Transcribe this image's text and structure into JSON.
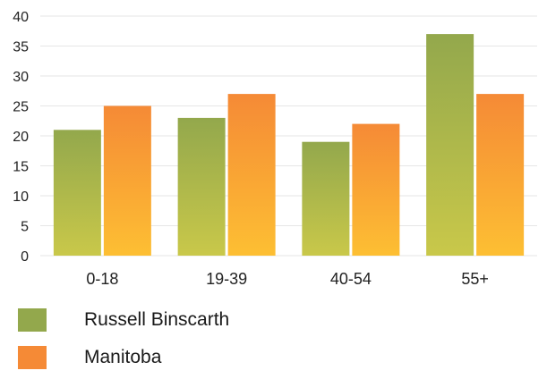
{
  "chart_data": {
    "type": "bar",
    "categories": [
      "0-18",
      "19-39",
      "40-54",
      "55+"
    ],
    "series": [
      {
        "name": "Russell Binscarth",
        "values": [
          21,
          23,
          19,
          37
        ],
        "color_top": "#93a84c",
        "color_bottom": "#c9c84a"
      },
      {
        "name": "Manitoba",
        "values": [
          25,
          27,
          22,
          27
        ],
        "color_top": "#f58a36",
        "color_bottom": "#fdbf33"
      }
    ],
    "ylim": [
      0,
      40
    ],
    "yticks": [
      0,
      5,
      10,
      15,
      20,
      25,
      30,
      35,
      40
    ],
    "grid": true,
    "legend_position": "bottom-left",
    "title": "",
    "xlabel": "",
    "ylabel": ""
  }
}
